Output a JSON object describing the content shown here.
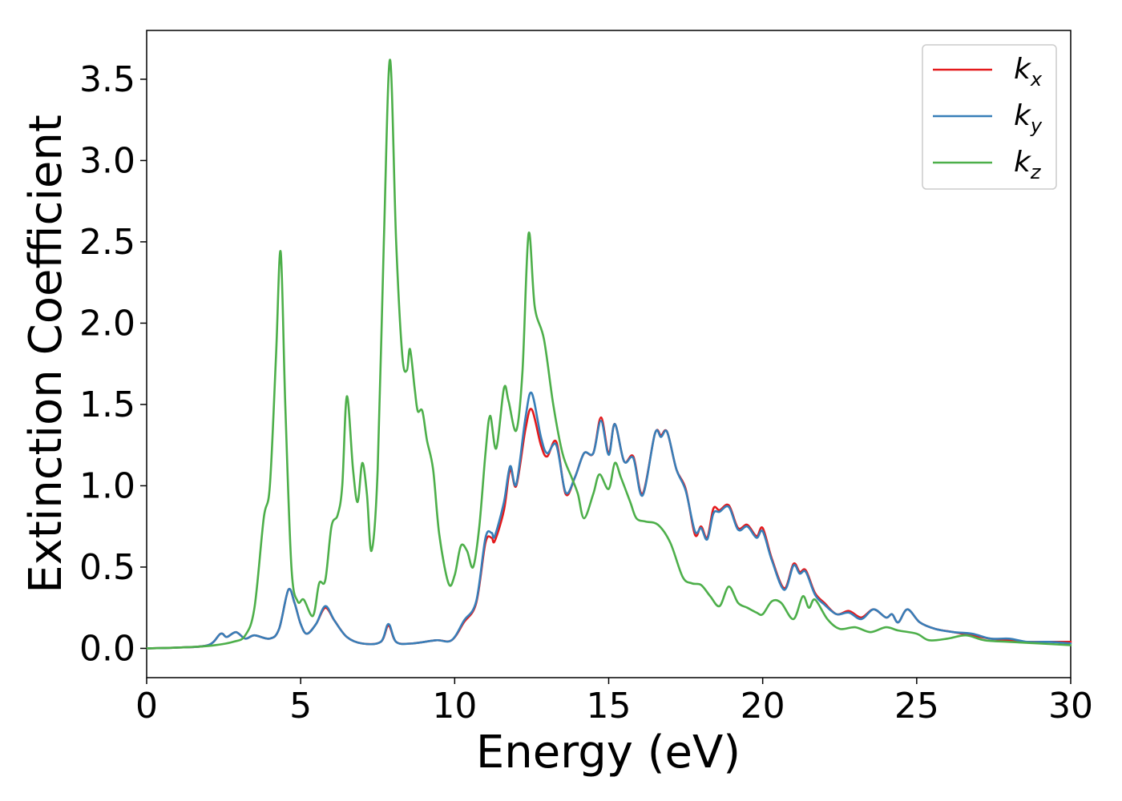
{
  "chart_data": {
    "type": "line",
    "xlabel": "Energy (eV)",
    "ylabel": "Extinction Coefficient",
    "xlim": [
      0,
      30
    ],
    "ylim": [
      -0.18,
      3.8
    ],
    "xticks": [
      0,
      5,
      10,
      15,
      20,
      25,
      30
    ],
    "xtick_labels": [
      "0",
      "5",
      "10",
      "15",
      "20",
      "25",
      "30"
    ],
    "yticks": [
      0.0,
      0.5,
      1.0,
      1.5,
      2.0,
      2.5,
      3.0,
      3.5
    ],
    "ytick_labels": [
      "0.0",
      "0.5",
      "1.0",
      "1.5",
      "2.0",
      "2.5",
      "3.0",
      "3.5"
    ],
    "grid": false,
    "legend_position": "top-right",
    "series": [
      {
        "name": "k_x",
        "label_main": "k",
        "label_sub": "x",
        "color": "#e41a1c",
        "points": [
          [
            0,
            0.0
          ],
          [
            1,
            0.005
          ],
          [
            2,
            0.02
          ],
          [
            2.4,
            0.09
          ],
          [
            2.6,
            0.07
          ],
          [
            2.9,
            0.1
          ],
          [
            3.2,
            0.06
          ],
          [
            3.5,
            0.08
          ],
          [
            4.0,
            0.06
          ],
          [
            4.3,
            0.12
          ],
          [
            4.6,
            0.36
          ],
          [
            4.8,
            0.28
          ],
          [
            5.0,
            0.15
          ],
          [
            5.2,
            0.09
          ],
          [
            5.5,
            0.15
          ],
          [
            5.8,
            0.25
          ],
          [
            6.1,
            0.17
          ],
          [
            6.5,
            0.07
          ],
          [
            7.0,
            0.03
          ],
          [
            7.6,
            0.04
          ],
          [
            7.85,
            0.14
          ],
          [
            8.1,
            0.04
          ],
          [
            8.6,
            0.03
          ],
          [
            9.4,
            0.05
          ],
          [
            9.9,
            0.05
          ],
          [
            10.3,
            0.16
          ],
          [
            10.7,
            0.28
          ],
          [
            11.0,
            0.65
          ],
          [
            11.2,
            0.68
          ],
          [
            11.3,
            0.66
          ],
          [
            11.6,
            0.85
          ],
          [
            11.8,
            1.1
          ],
          [
            12.0,
            1.0
          ],
          [
            12.3,
            1.35
          ],
          [
            12.5,
            1.47
          ],
          [
            12.8,
            1.25
          ],
          [
            13.0,
            1.18
          ],
          [
            13.3,
            1.27
          ],
          [
            13.6,
            0.95
          ],
          [
            13.9,
            1.05
          ],
          [
            14.2,
            1.2
          ],
          [
            14.5,
            1.2
          ],
          [
            14.75,
            1.42
          ],
          [
            15.0,
            1.2
          ],
          [
            15.2,
            1.38
          ],
          [
            15.5,
            1.15
          ],
          [
            15.8,
            1.18
          ],
          [
            16.1,
            0.95
          ],
          [
            16.5,
            1.32
          ],
          [
            16.7,
            1.31
          ],
          [
            16.9,
            1.33
          ],
          [
            17.2,
            1.1
          ],
          [
            17.5,
            0.98
          ],
          [
            17.8,
            0.7
          ],
          [
            18.0,
            0.75
          ],
          [
            18.2,
            0.68
          ],
          [
            18.4,
            0.86
          ],
          [
            18.6,
            0.85
          ],
          [
            18.9,
            0.88
          ],
          [
            19.2,
            0.74
          ],
          [
            19.5,
            0.76
          ],
          [
            19.8,
            0.69
          ],
          [
            20.0,
            0.74
          ],
          [
            20.3,
            0.55
          ],
          [
            20.7,
            0.37
          ],
          [
            21.0,
            0.52
          ],
          [
            21.2,
            0.47
          ],
          [
            21.4,
            0.48
          ],
          [
            21.7,
            0.34
          ],
          [
            22.0,
            0.28
          ],
          [
            22.4,
            0.21
          ],
          [
            22.8,
            0.23
          ],
          [
            23.2,
            0.19
          ],
          [
            23.6,
            0.24
          ],
          [
            24.0,
            0.19
          ],
          [
            24.2,
            0.21
          ],
          [
            24.4,
            0.16
          ],
          [
            24.7,
            0.24
          ],
          [
            25.1,
            0.16
          ],
          [
            25.6,
            0.12
          ],
          [
            26.2,
            0.1
          ],
          [
            26.8,
            0.08
          ],
          [
            27.4,
            0.06
          ],
          [
            28.0,
            0.05
          ],
          [
            28.6,
            0.04
          ],
          [
            29.3,
            0.04
          ],
          [
            30,
            0.04
          ]
        ]
      },
      {
        "name": "k_y",
        "label_main": "k",
        "label_sub": "y",
        "color": "#377eb8",
        "points": [
          [
            0,
            0.0
          ],
          [
            1,
            0.005
          ],
          [
            2,
            0.02
          ],
          [
            2.4,
            0.09
          ],
          [
            2.6,
            0.07
          ],
          [
            2.9,
            0.1
          ],
          [
            3.2,
            0.06
          ],
          [
            3.5,
            0.08
          ],
          [
            4.0,
            0.06
          ],
          [
            4.3,
            0.12
          ],
          [
            4.6,
            0.36
          ],
          [
            4.8,
            0.28
          ],
          [
            5.0,
            0.15
          ],
          [
            5.2,
            0.09
          ],
          [
            5.5,
            0.15
          ],
          [
            5.8,
            0.26
          ],
          [
            6.1,
            0.17
          ],
          [
            6.5,
            0.07
          ],
          [
            7.0,
            0.03
          ],
          [
            7.6,
            0.04
          ],
          [
            7.85,
            0.15
          ],
          [
            8.1,
            0.04
          ],
          [
            8.6,
            0.03
          ],
          [
            9.4,
            0.05
          ],
          [
            9.9,
            0.05
          ],
          [
            10.3,
            0.17
          ],
          [
            10.7,
            0.29
          ],
          [
            11.0,
            0.68
          ],
          [
            11.2,
            0.71
          ],
          [
            11.3,
            0.69
          ],
          [
            11.6,
            0.9
          ],
          [
            11.8,
            1.12
          ],
          [
            12.0,
            1.01
          ],
          [
            12.3,
            1.42
          ],
          [
            12.5,
            1.57
          ],
          [
            12.8,
            1.3
          ],
          [
            13.0,
            1.2
          ],
          [
            13.3,
            1.25
          ],
          [
            13.6,
            0.96
          ],
          [
            13.9,
            1.05
          ],
          [
            14.2,
            1.2
          ],
          [
            14.5,
            1.2
          ],
          [
            14.75,
            1.4
          ],
          [
            15.0,
            1.19
          ],
          [
            15.2,
            1.38
          ],
          [
            15.5,
            1.15
          ],
          [
            15.8,
            1.17
          ],
          [
            16.1,
            0.94
          ],
          [
            16.5,
            1.32
          ],
          [
            16.7,
            1.3
          ],
          [
            16.9,
            1.33
          ],
          [
            17.2,
            1.1
          ],
          [
            17.5,
            0.97
          ],
          [
            17.8,
            0.72
          ],
          [
            18.0,
            0.74
          ],
          [
            18.2,
            0.67
          ],
          [
            18.4,
            0.83
          ],
          [
            18.6,
            0.84
          ],
          [
            18.9,
            0.87
          ],
          [
            19.2,
            0.73
          ],
          [
            19.5,
            0.75
          ],
          [
            19.8,
            0.68
          ],
          [
            20.0,
            0.72
          ],
          [
            20.3,
            0.54
          ],
          [
            20.7,
            0.36
          ],
          [
            21.0,
            0.51
          ],
          [
            21.2,
            0.46
          ],
          [
            21.4,
            0.47
          ],
          [
            21.7,
            0.33
          ],
          [
            22.0,
            0.27
          ],
          [
            22.4,
            0.21
          ],
          [
            22.8,
            0.22
          ],
          [
            23.2,
            0.18
          ],
          [
            23.6,
            0.24
          ],
          [
            24.0,
            0.19
          ],
          [
            24.2,
            0.21
          ],
          [
            24.4,
            0.16
          ],
          [
            24.7,
            0.24
          ],
          [
            25.1,
            0.16
          ],
          [
            25.6,
            0.12
          ],
          [
            26.2,
            0.1
          ],
          [
            26.8,
            0.09
          ],
          [
            27.4,
            0.06
          ],
          [
            28.0,
            0.06
          ],
          [
            28.6,
            0.04
          ],
          [
            29.3,
            0.04
          ],
          [
            30,
            0.03
          ]
        ]
      },
      {
        "name": "k_z",
        "label_main": "k",
        "label_sub": "z",
        "color": "#4daf4a",
        "points": [
          [
            0,
            0.0
          ],
          [
            1,
            0.005
          ],
          [
            2,
            0.015
          ],
          [
            2.8,
            0.04
          ],
          [
            3.2,
            0.08
          ],
          [
            3.5,
            0.25
          ],
          [
            3.8,
            0.8
          ],
          [
            4.0,
            1.0
          ],
          [
            4.2,
            1.8
          ],
          [
            4.35,
            2.44
          ],
          [
            4.5,
            1.5
          ],
          [
            4.7,
            0.5
          ],
          [
            4.9,
            0.29
          ],
          [
            5.1,
            0.3
          ],
          [
            5.4,
            0.2
          ],
          [
            5.6,
            0.4
          ],
          [
            5.8,
            0.42
          ],
          [
            6.0,
            0.75
          ],
          [
            6.2,
            0.82
          ],
          [
            6.35,
            1.0
          ],
          [
            6.5,
            1.55
          ],
          [
            6.7,
            1.1
          ],
          [
            6.85,
            0.9
          ],
          [
            7.0,
            1.14
          ],
          [
            7.15,
            0.95
          ],
          [
            7.3,
            0.6
          ],
          [
            7.5,
            1.1
          ],
          [
            7.7,
            2.5
          ],
          [
            7.9,
            3.62
          ],
          [
            8.1,
            2.5
          ],
          [
            8.3,
            1.8
          ],
          [
            8.45,
            1.71
          ],
          [
            8.55,
            1.84
          ],
          [
            8.7,
            1.6
          ],
          [
            8.8,
            1.46
          ],
          [
            8.95,
            1.46
          ],
          [
            9.1,
            1.28
          ],
          [
            9.3,
            1.1
          ],
          [
            9.5,
            0.7
          ],
          [
            9.8,
            0.4
          ],
          [
            10.0,
            0.45
          ],
          [
            10.2,
            0.63
          ],
          [
            10.4,
            0.6
          ],
          [
            10.6,
            0.5
          ],
          [
            10.8,
            0.75
          ],
          [
            11.0,
            1.2
          ],
          [
            11.15,
            1.43
          ],
          [
            11.35,
            1.23
          ],
          [
            11.6,
            1.6
          ],
          [
            11.75,
            1.52
          ],
          [
            12.0,
            1.34
          ],
          [
            12.2,
            1.7
          ],
          [
            12.4,
            2.55
          ],
          [
            12.6,
            2.1
          ],
          [
            12.9,
            1.9
          ],
          [
            13.2,
            1.5
          ],
          [
            13.5,
            1.2
          ],
          [
            13.8,
            1.05
          ],
          [
            14.0,
            0.95
          ],
          [
            14.2,
            0.8
          ],
          [
            14.5,
            0.95
          ],
          [
            14.7,
            1.07
          ],
          [
            15.0,
            0.98
          ],
          [
            15.2,
            1.14
          ],
          [
            15.4,
            1.05
          ],
          [
            15.7,
            0.9
          ],
          [
            15.9,
            0.8
          ],
          [
            16.2,
            0.78
          ],
          [
            16.6,
            0.76
          ],
          [
            17.0,
            0.65
          ],
          [
            17.4,
            0.44
          ],
          [
            17.7,
            0.4
          ],
          [
            18.0,
            0.39
          ],
          [
            18.3,
            0.32
          ],
          [
            18.6,
            0.26
          ],
          [
            18.9,
            0.38
          ],
          [
            19.2,
            0.28
          ],
          [
            19.5,
            0.25
          ],
          [
            19.8,
            0.22
          ],
          [
            20.0,
            0.21
          ],
          [
            20.3,
            0.29
          ],
          [
            20.6,
            0.28
          ],
          [
            21.0,
            0.18
          ],
          [
            21.3,
            0.32
          ],
          [
            21.5,
            0.25
          ],
          [
            21.7,
            0.3
          ],
          [
            22.1,
            0.18
          ],
          [
            22.5,
            0.12
          ],
          [
            23.0,
            0.13
          ],
          [
            23.5,
            0.1
          ],
          [
            24.0,
            0.13
          ],
          [
            24.4,
            0.11
          ],
          [
            25.0,
            0.09
          ],
          [
            25.4,
            0.05
          ],
          [
            26.0,
            0.06
          ],
          [
            26.6,
            0.08
          ],
          [
            27.2,
            0.05
          ],
          [
            28.0,
            0.04
          ],
          [
            29.0,
            0.03
          ],
          [
            30,
            0.02
          ]
        ]
      }
    ]
  }
}
